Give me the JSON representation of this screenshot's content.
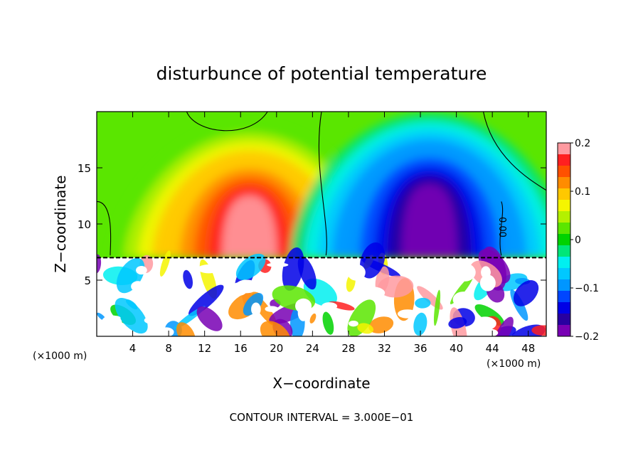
{
  "chart_data": {
    "type": "heatmap",
    "title": "disturbunce of potential temperature",
    "xlabel": "X−coordinate",
    "ylabel": "Z−coordinate",
    "x_unit_left": "(×1000 m)",
    "x_unit_right": "(×1000 m)",
    "footer": "CONTOUR INTERVAL = 3.000E−01",
    "contour_label": "0.00",
    "xlim": [
      0,
      50
    ],
    "ylim": [
      0,
      20
    ],
    "x_ticks": [
      4,
      8,
      12,
      16,
      20,
      24,
      28,
      32,
      36,
      40,
      44,
      48
    ],
    "y_ticks": [
      5,
      10,
      15
    ],
    "colorbar": {
      "range": [
        -0.2,
        0.2
      ],
      "tick_values": [
        0.2,
        0.1,
        0,
        -0.1,
        -0.2
      ],
      "tick_labels": [
        "0.2",
        "0.1",
        "0",
        "−0.1",
        "−0.2"
      ],
      "colors": [
        "#ff9aa0",
        "#ff2020",
        "#ff5000",
        "#ff8c00",
        "#ffc800",
        "#f5f500",
        "#b4f000",
        "#5ae600",
        "#00d200",
        "#00e678",
        "#00f0f0",
        "#00c8ff",
        "#0096ff",
        "#0046ff",
        "#0000e6",
        "#2800a0",
        "#7800b4"
      ]
    },
    "features": [
      {
        "kind": "warm_plume",
        "x": 17,
        "z": 11,
        "peak": 0.2
      },
      {
        "kind": "cold_plume",
        "x": 37,
        "z": 12,
        "peak": -0.2
      },
      {
        "kind": "mixed_layer",
        "z_top": 7
      }
    ]
  }
}
